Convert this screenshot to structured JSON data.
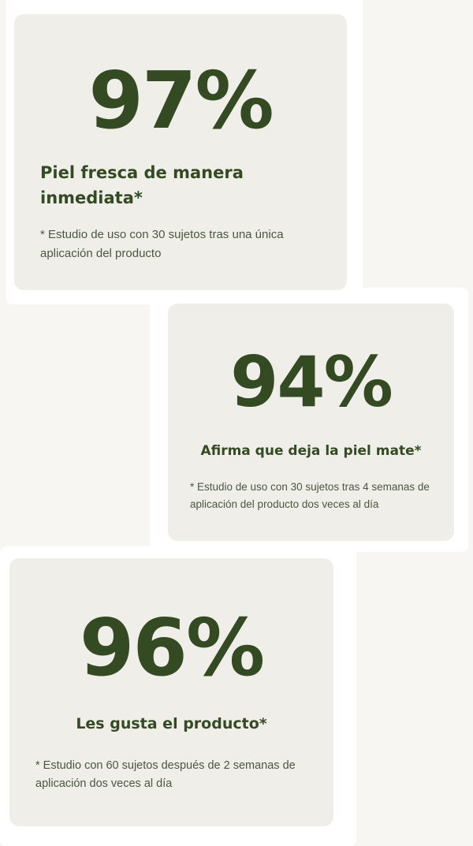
{
  "stats": [
    {
      "value": "97%",
      "headline": "Piel fresca de manera inmediata*",
      "footnote": "* Estudio de uso con 30 sujetos tras una única aplicación del producto"
    },
    {
      "value": "94%",
      "headline": "Afirma que deja la piel mate*",
      "footnote": "* Estudio de uso con 30 sujetos tras 4 semanas de aplicación del producto dos veces al día"
    },
    {
      "value": "96%",
      "headline": "Les gusta el producto*",
      "footnote": "* Estudio con 60 sujetos después de 2 semanas de aplicación dos veces al día"
    }
  ],
  "colors": {
    "text": "#344a22",
    "card": "#efeee9",
    "background": "#f7f6f2"
  }
}
